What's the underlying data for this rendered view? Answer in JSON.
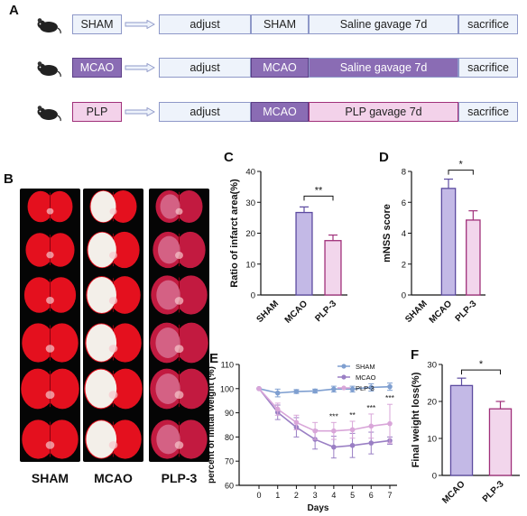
{
  "panels": {
    "A": "A",
    "B": "B",
    "C": "C",
    "D": "D",
    "E": "E",
    "F": "F"
  },
  "colors": {
    "sham": "#7f9fd0",
    "mcao": "#9a7fc4",
    "mcao_fill": "#c3b9e6",
    "plp": "#d9a6d9",
    "plp_fill": "#f2d6ec",
    "box_border": "#8e98c8",
    "box_fill": "#eef3fb",
    "mcao_box": "#8a6cb4",
    "plp_box": "#f3d2ea",
    "plp_box_border": "#a0307a"
  },
  "panel_a": {
    "rows": [
      {
        "group": "SHAM",
        "adjust": "adjust",
        "model": "SHAM",
        "gavage": "Saline gavage 7d",
        "end": "sacrifice"
      },
      {
        "group": "MCAO",
        "adjust": "adjust",
        "model": "MCAO",
        "gavage": "Saline gavage 7d",
        "end": "sacrifice"
      },
      {
        "group": "PLP",
        "adjust": "adjust",
        "model": "MCAO",
        "gavage": "PLP  gavage 7d",
        "end": "sacrifice"
      }
    ]
  },
  "panel_b": {
    "columns": [
      "SHAM",
      "MCAO",
      "PLP-3"
    ]
  },
  "chart_data": [
    {
      "panel": "C",
      "type": "bar",
      "categories": [
        "SHAM",
        "MCAO",
        "PLP-3"
      ],
      "values": [
        0,
        26.7,
        17.6
      ],
      "errors": [
        0,
        1.8,
        1.8
      ],
      "ylabel": "Ratio of infarct area(%)",
      "ylim": [
        0,
        40
      ],
      "yticks": [
        0,
        10,
        20,
        30,
        40
      ],
      "significance": [
        {
          "between": [
            "MCAO",
            "PLP-3"
          ],
          "label": "**"
        }
      ]
    },
    {
      "panel": "D",
      "type": "bar",
      "categories": [
        "SHAM",
        "MCAO",
        "PLP-3"
      ],
      "values": [
        0,
        6.9,
        4.85
      ],
      "errors": [
        0,
        0.6,
        0.6
      ],
      "ylabel": "mNSS score",
      "ylim": [
        0,
        8
      ],
      "yticks": [
        0,
        2,
        4,
        6,
        8
      ],
      "significance": [
        {
          "between": [
            "MCAO",
            "PLP-3"
          ],
          "label": "*"
        }
      ]
    },
    {
      "panel": "E",
      "type": "line",
      "x": [
        0,
        1,
        2,
        3,
        4,
        5,
        6,
        7
      ],
      "xlabel": "Days",
      "ylabel": "percent of initial weight (%)",
      "ylim": [
        60,
        110
      ],
      "yticks": [
        60,
        70,
        80,
        90,
        100,
        110
      ],
      "series": [
        {
          "name": "SHAM",
          "values": [
            100,
            98.2,
            98.8,
            99.0,
            99.8,
            99.8,
            100.5,
            100.8
          ],
          "errors": [
            0,
            1.6,
            0.8,
            0.8,
            1.2,
            1.2,
            1.5,
            1.5
          ]
        },
        {
          "name": "MCAO",
          "values": [
            100,
            90.2,
            84.0,
            79.0,
            75.8,
            76.5,
            77.5,
            78.5
          ],
          "errors": [
            0,
            3.0,
            4.0,
            4.0,
            4.5,
            5.0,
            4.5,
            1.5
          ]
        },
        {
          "name": "PLP-3",
          "values": [
            100,
            91.5,
            86.0,
            82.5,
            82.5,
            83.0,
            84.5,
            85.5
          ],
          "errors": [
            0,
            2.5,
            3.0,
            3.5,
            3.5,
            3.5,
            5.0,
            8.0
          ]
        }
      ],
      "annotations": [
        {
          "x": 4,
          "label": "***"
        },
        {
          "x": 5,
          "label": "**"
        },
        {
          "x": 6,
          "label": "***"
        },
        {
          "x": 7,
          "label": "***"
        }
      ],
      "legend": "top-right"
    },
    {
      "panel": "F",
      "type": "bar",
      "categories": [
        "MCAO",
        "PLP-3"
      ],
      "values": [
        24.3,
        18.0
      ],
      "errors": [
        2.0,
        2.0
      ],
      "ylabel": "Final weight loss(%)",
      "ylim": [
        0,
        30
      ],
      "yticks": [
        0,
        10,
        20,
        30
      ],
      "significance": [
        {
          "between": [
            "MCAO",
            "PLP-3"
          ],
          "label": "*"
        }
      ]
    }
  ]
}
